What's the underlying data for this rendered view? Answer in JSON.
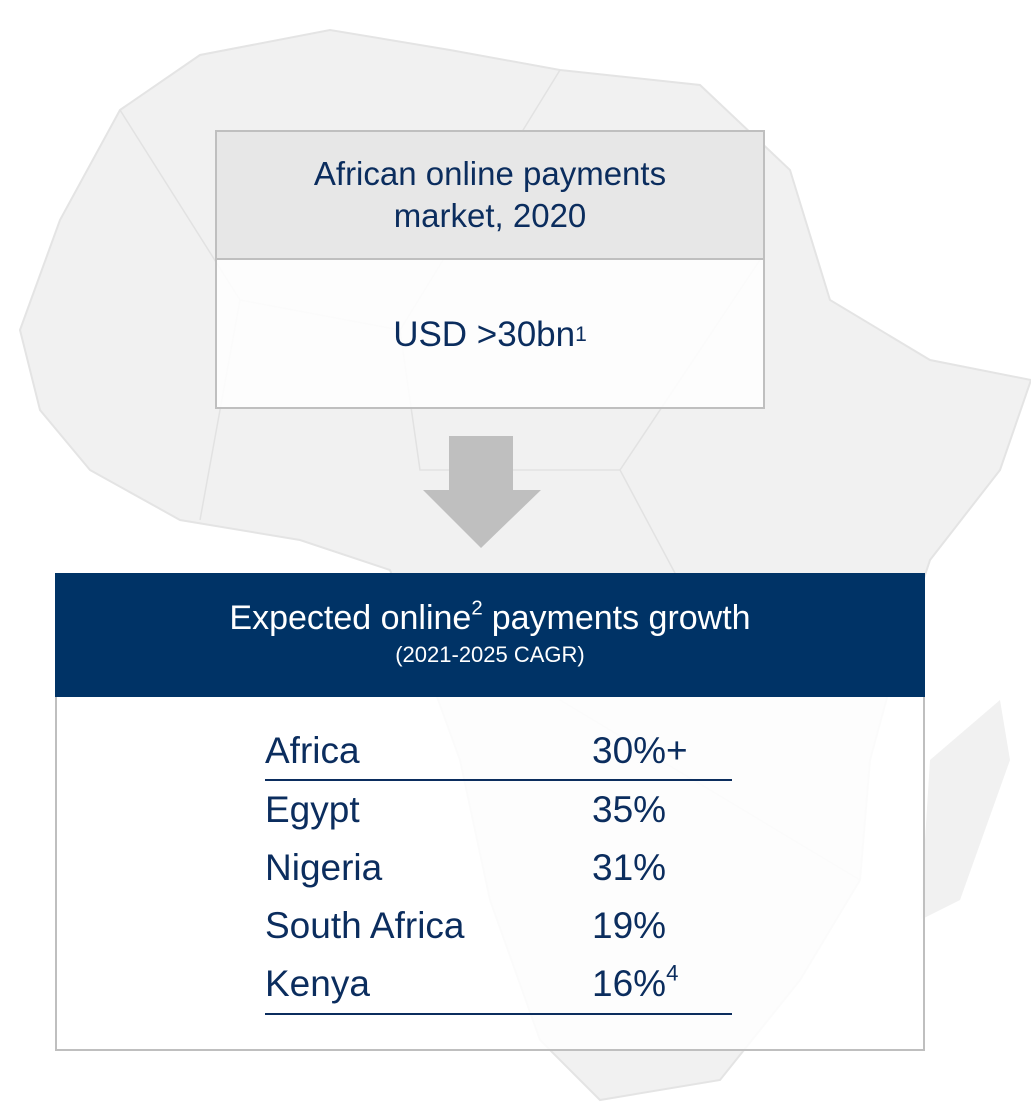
{
  "market_box": {
    "title_lines": [
      "African online payments",
      "market, 2020"
    ],
    "value": "USD >30bn",
    "value_note": "1"
  },
  "growth_box": {
    "title_before": "Expected online",
    "title_note": "2",
    "title_after": "payments growth",
    "subtitle": "(2021-2025 CAGR)",
    "table": {
      "header": {
        "country": "Africa",
        "growth": "30%+"
      },
      "rows": [
        {
          "country": "Egypt",
          "growth": "35%"
        },
        {
          "country": "Nigeria",
          "growth": "31%"
        },
        {
          "country": "South Africa",
          "growth": "19%"
        },
        {
          "country": "Kenya",
          "growth": "16%",
          "note": "4"
        }
      ]
    }
  }
}
